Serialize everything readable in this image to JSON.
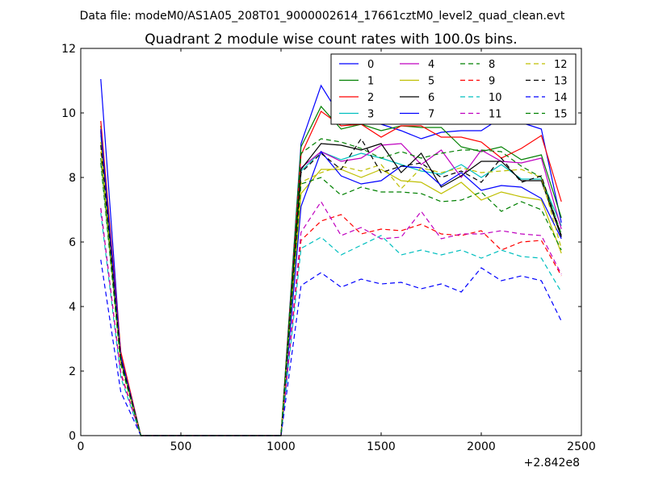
{
  "suptitle": "Data file: modeM0/AS1A05_208T01_9000002614_17661cztM0_level2_quad_clean.evt",
  "chart_data": {
    "type": "line",
    "title": "Quadrant 2 module wise count rates with 100.0s bins.",
    "xlabel": "",
    "ylabel": "",
    "x_offset_label": "+2.842e8",
    "xlim": [
      0,
      2500
    ],
    "ylim": [
      0,
      12
    ],
    "x_ticks": [
      0,
      500,
      1000,
      1500,
      2000,
      2500
    ],
    "y_ticks": [
      0,
      2,
      4,
      6,
      8,
      10,
      12
    ],
    "grid": false,
    "legend": {
      "position": "top-right",
      "columns": 4
    },
    "x": [
      100,
      200,
      300,
      400,
      500,
      600,
      700,
      800,
      900,
      1000,
      1100,
      1200,
      1300,
      1400,
      1500,
      1600,
      1700,
      1800,
      1900,
      2000,
      2100,
      2200,
      2300,
      2400
    ],
    "series": [
      {
        "name": "0",
        "color": "#0000ff",
        "dash": "solid",
        "values": [
          11.05,
          2.5,
          0,
          0,
          0,
          0,
          0,
          0,
          0,
          0,
          9.05,
          10.85,
          9.85,
          9.7,
          9.65,
          9.45,
          9.2,
          9.4,
          9.45,
          9.45,
          9.85,
          9.7,
          9.5,
          6.6
        ]
      },
      {
        "name": "1",
        "color": "#008000",
        "dash": "solid",
        "values": [
          9.6,
          2.55,
          0,
          0,
          0,
          0,
          0,
          0,
          0,
          0,
          8.95,
          10.2,
          9.5,
          9.65,
          9.45,
          9.6,
          9.55,
          9.55,
          8.95,
          8.8,
          8.95,
          8.55,
          8.7,
          6.75
        ]
      },
      {
        "name": "2",
        "color": "#ff0000",
        "dash": "solid",
        "values": [
          9.75,
          2.6,
          0,
          0,
          0,
          0,
          0,
          0,
          0,
          0,
          8.7,
          10.05,
          9.6,
          9.65,
          9.25,
          9.6,
          9.6,
          9.25,
          9.25,
          9.1,
          8.6,
          8.9,
          9.3,
          7.25
        ]
      },
      {
        "name": "3",
        "color": "#00bfbf",
        "dash": "solid",
        "values": [
          9.3,
          2.3,
          0,
          0,
          0,
          0,
          0,
          0,
          0,
          0,
          8.2,
          8.8,
          8.55,
          8.75,
          8.6,
          8.4,
          8.2,
          8.1,
          8.4,
          8.0,
          8.4,
          7.95,
          7.95,
          6.5
        ]
      },
      {
        "name": "4",
        "color": "#bf00bf",
        "dash": "solid",
        "values": [
          9.4,
          2.35,
          0,
          0,
          0,
          0,
          0,
          0,
          0,
          0,
          8.3,
          8.8,
          8.5,
          8.6,
          9.0,
          9.05,
          8.4,
          8.85,
          8.0,
          8.85,
          8.5,
          8.45,
          8.6,
          6.4
        ]
      },
      {
        "name": "5",
        "color": "#bfbf00",
        "dash": "solid",
        "values": [
          9.1,
          2.3,
          0,
          0,
          0,
          0,
          0,
          0,
          0,
          0,
          7.5,
          8.25,
          8.25,
          8.0,
          8.25,
          7.9,
          7.85,
          7.5,
          7.85,
          7.3,
          7.55,
          7.4,
          7.3,
          5.65
        ]
      },
      {
        "name": "6",
        "color": "#000000",
        "dash": "solid",
        "values": [
          9.45,
          2.4,
          0,
          0,
          0,
          0,
          0,
          0,
          0,
          0,
          8.25,
          9.05,
          9.0,
          8.85,
          9.05,
          8.15,
          8.75,
          7.7,
          8.05,
          8.5,
          8.5,
          7.9,
          7.9,
          6.15
        ]
      },
      {
        "name": "7",
        "color": "#0000ff",
        "dash": "solid",
        "values": [
          9.5,
          2.45,
          0,
          0,
          0,
          0,
          0,
          0,
          0,
          0,
          7.1,
          8.8,
          8.05,
          7.8,
          7.9,
          8.35,
          8.3,
          7.75,
          8.15,
          7.6,
          7.75,
          7.7,
          7.35,
          6.1
        ]
      },
      {
        "name": "8",
        "color": "#008000",
        "dash": "dashed",
        "values": [
          8.6,
          2.3,
          0,
          0,
          0,
          0,
          0,
          0,
          0,
          0,
          8.75,
          9.2,
          9.1,
          8.9,
          8.6,
          8.8,
          8.6,
          8.75,
          8.85,
          8.85,
          8.8,
          8.35,
          8.0,
          6.25
        ]
      },
      {
        "name": "9",
        "color": "#ff0000",
        "dash": "dashed",
        "values": [
          7.05,
          1.95,
          0,
          0,
          0,
          0,
          0,
          0,
          0,
          0,
          6.05,
          6.65,
          6.85,
          6.25,
          6.4,
          6.35,
          6.55,
          6.25,
          6.2,
          6.35,
          5.75,
          6.0,
          6.05,
          4.95
        ]
      },
      {
        "name": "10",
        "color": "#00bfbf",
        "dash": "dashed",
        "values": [
          6.9,
          1.8,
          0,
          0,
          0,
          0,
          0,
          0,
          0,
          0,
          5.8,
          6.15,
          5.6,
          5.9,
          6.2,
          5.6,
          5.75,
          5.6,
          5.75,
          5.5,
          5.75,
          5.55,
          5.5,
          4.45
        ]
      },
      {
        "name": "11",
        "color": "#bf00bf",
        "dash": "dashed",
        "values": [
          7.05,
          1.9,
          0,
          0,
          0,
          0,
          0,
          0,
          0,
          0,
          6.3,
          7.25,
          6.2,
          6.45,
          6.1,
          6.15,
          6.95,
          6.1,
          6.25,
          6.25,
          6.35,
          6.25,
          6.2,
          5.0
        ]
      },
      {
        "name": "12",
        "color": "#bfbf00",
        "dash": "dashed",
        "values": [
          8.8,
          2.3,
          0,
          0,
          0,
          0,
          0,
          0,
          0,
          0,
          7.85,
          8.15,
          8.35,
          8.2,
          8.4,
          7.65,
          8.3,
          8.15,
          8.3,
          8.15,
          8.2,
          8.25,
          8.0,
          5.8
        ]
      },
      {
        "name": "13",
        "color": "#000000",
        "dash": "dashed",
        "values": [
          9.0,
          2.35,
          0,
          0,
          0,
          0,
          0,
          0,
          0,
          0,
          8.15,
          8.75,
          8.25,
          9.2,
          8.15,
          8.35,
          8.45,
          8.0,
          8.2,
          7.85,
          8.6,
          7.85,
          8.05,
          6.2
        ]
      },
      {
        "name": "14",
        "color": "#0000ff",
        "dash": "dashed",
        "values": [
          5.45,
          1.35,
          0,
          0,
          0,
          0,
          0,
          0,
          0,
          0,
          4.65,
          5.05,
          4.6,
          4.85,
          4.7,
          4.75,
          4.55,
          4.7,
          4.45,
          5.2,
          4.8,
          4.95,
          4.8,
          3.55
        ]
      },
      {
        "name": "15",
        "color": "#008000",
        "dash": "dashed",
        "values": [
          8.45,
          2.2,
          0,
          0,
          0,
          0,
          0,
          0,
          0,
          0,
          7.8,
          8.0,
          7.45,
          7.7,
          7.55,
          7.55,
          7.5,
          7.25,
          7.3,
          7.55,
          6.95,
          7.25,
          7.0,
          5.75
        ]
      }
    ]
  }
}
